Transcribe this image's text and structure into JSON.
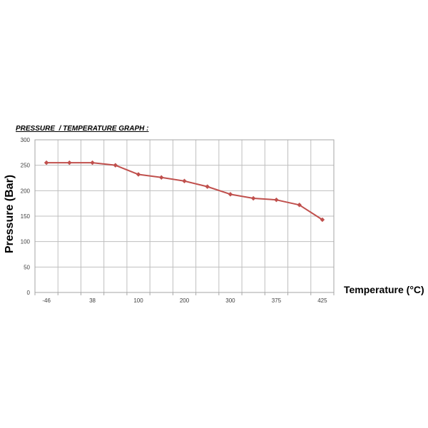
{
  "chart_data": {
    "type": "line",
    "title": "PRESSURE  / TEMPERATURE GRAPH :",
    "xlabel": "Temperature (°C)",
    "ylabel": "Pressure (Bar)",
    "x_tick_labels": [
      "-46",
      "38",
      "100",
      "200",
      "300",
      "375",
      "425"
    ],
    "y_ticks": [
      0,
      50,
      100,
      150,
      200,
      250,
      300
    ],
    "ylim": [
      0,
      300
    ],
    "grid": true,
    "legend": "none",
    "series": [
      {
        "values": [
          255,
          255,
          255,
          250,
          232,
          226,
          219,
          208,
          193,
          185,
          182,
          172,
          143
        ],
        "color": "#c0504d"
      }
    ]
  }
}
